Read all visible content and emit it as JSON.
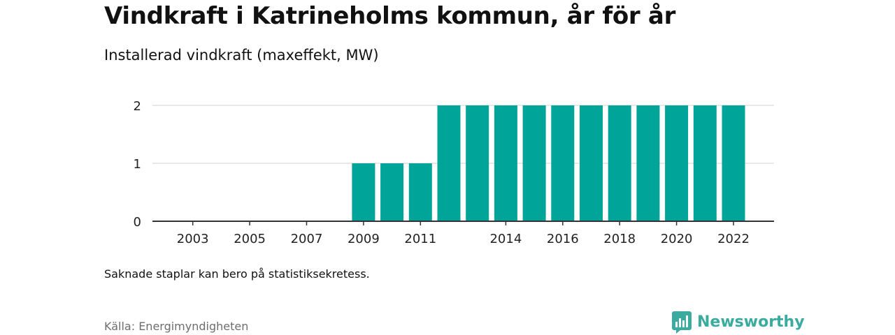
{
  "header": {
    "title": "Vindkraft i Katrineholms kommun, år för år",
    "subtitle": "Installerad vindkraft (maxeffekt, MW)"
  },
  "footer": {
    "note": "Saknade staplar kan bero på statistiksekretess.",
    "source": "Källa: Energimyndigheten",
    "brand_name": "Newsworthy",
    "brand_icon": "newsworthy-logo-icon"
  },
  "colors": {
    "bar": "#00a499",
    "brand": "#3aab9e",
    "grid": "#d9d9d9",
    "axis": "#333333"
  },
  "chart_data": {
    "type": "bar",
    "title": "Vindkraft i Katrineholms kommun, år för år",
    "subtitle": "Installerad vindkraft (maxeffekt, MW)",
    "xlabel": "",
    "ylabel": "",
    "categories": [
      "2002",
      "2003",
      "2004",
      "2005",
      "2006",
      "2007",
      "2008",
      "2009",
      "2010",
      "2011",
      "2012",
      "2013",
      "2014",
      "2015",
      "2016",
      "2017",
      "2018",
      "2019",
      "2020",
      "2021",
      "2022"
    ],
    "values": [
      0,
      0,
      0,
      0,
      0,
      0,
      0,
      1,
      1,
      1,
      2,
      2,
      2,
      2,
      2,
      2,
      2,
      2,
      2,
      2,
      2
    ],
    "x_tick_labels": [
      "2003",
      "2005",
      "2007",
      "2009",
      "2011",
      "2014",
      "2016",
      "2018",
      "2020",
      "2022"
    ],
    "y_ticks": [
      0,
      1,
      2
    ],
    "ylim": [
      0,
      2
    ],
    "grid": true,
    "legend": "none"
  }
}
